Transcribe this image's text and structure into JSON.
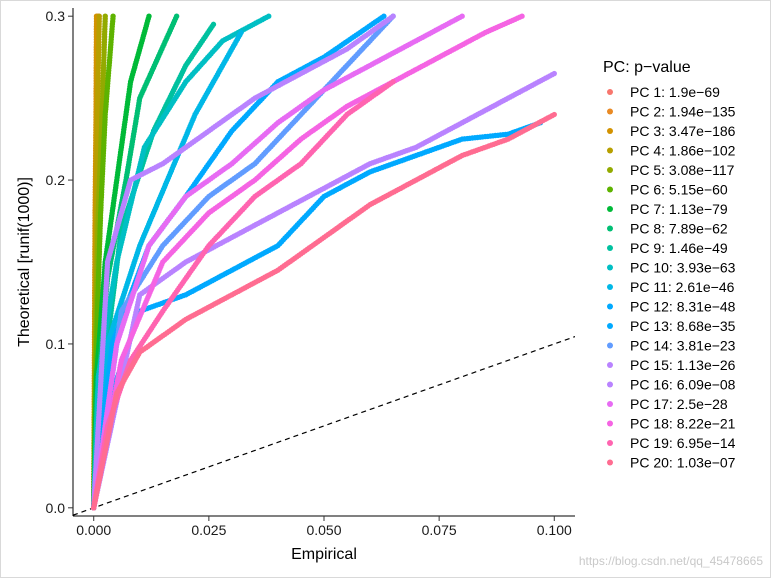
{
  "chart_data": {
    "type": "scatter",
    "title": "",
    "xlabel": "Empirical",
    "ylabel": "Theoretical [runif(1000)]",
    "xlim": [
      -0.0045,
      0.1045
    ],
    "ylim": [
      -0.005,
      0.305
    ],
    "xticks": [
      0.0,
      0.025,
      0.05,
      0.075,
      0.1
    ],
    "xtick_labels": [
      "0.000",
      "0.025",
      "0.050",
      "0.075",
      "0.100"
    ],
    "yticks": [
      0.0,
      0.1,
      0.2,
      0.3
    ],
    "ytick_labels": [
      "0.0",
      "0.1",
      "0.2",
      "0.3"
    ],
    "reference_line": {
      "style": "dashed",
      "slope": 1,
      "intercept": 0
    },
    "legend": {
      "title": "PC: p−value",
      "position": "right"
    },
    "series": [
      {
        "name": "PC 1: 1.9e−69",
        "color": "#F8766D",
        "x": [
          0.0,
          0.0002,
          0.0004,
          0.0006,
          0.0008,
          0.001
        ],
        "y": [
          0.0,
          0.06,
          0.12,
          0.18,
          0.24,
          0.3
        ]
      },
      {
        "name": "PC 2: 1.94e−135",
        "color": "#E98A24",
        "x": [
          0.0,
          0.0002,
          0.0004,
          0.0006,
          0.0008,
          0.0009
        ],
        "y": [
          0.0,
          0.06,
          0.12,
          0.18,
          0.24,
          0.3
        ]
      },
      {
        "name": "PC 3: 3.47e−186",
        "color": "#D39200",
        "x": [
          0.0,
          0.0001,
          0.0002,
          0.0003,
          0.0005,
          0.0006
        ],
        "y": [
          0.0,
          0.06,
          0.12,
          0.18,
          0.24,
          0.3
        ]
      },
      {
        "name": "PC 4: 1.86e−102",
        "color": "#B79F00",
        "x": [
          0.0,
          0.0002,
          0.0004,
          0.0006,
          0.0008,
          0.0012
        ],
        "y": [
          0.0,
          0.06,
          0.12,
          0.18,
          0.24,
          0.3
        ]
      },
      {
        "name": "PC 5: 3.08e−117",
        "color": "#93AA00",
        "x": [
          0.0,
          0.0002,
          0.0005,
          0.001,
          0.0018,
          0.0025
        ],
        "y": [
          0.0,
          0.06,
          0.12,
          0.18,
          0.24,
          0.3
        ]
      },
      {
        "name": "PC 6: 5.15e−60",
        "color": "#5EB300",
        "x": [
          0.0,
          0.0003,
          0.0008,
          0.0015,
          0.0025,
          0.0042
        ],
        "y": [
          0.0,
          0.06,
          0.12,
          0.18,
          0.24,
          0.3
        ]
      },
      {
        "name": "PC 7: 1.13e−79",
        "color": "#00BA38",
        "x": [
          0.0,
          0.0006,
          0.0025,
          0.005,
          0.008,
          0.012
        ],
        "y": [
          0.0,
          0.08,
          0.15,
          0.2,
          0.26,
          0.3
        ]
      },
      {
        "name": "PC 8: 7.89e−62",
        "color": "#00BF74",
        "x": [
          0.0,
          0.0008,
          0.003,
          0.007,
          0.01,
          0.018
        ],
        "y": [
          0.0,
          0.07,
          0.14,
          0.2,
          0.25,
          0.3
        ]
      },
      {
        "name": "PC 9: 1.46e−49",
        "color": "#00C19F",
        "x": [
          0.0,
          0.002,
          0.006,
          0.013,
          0.02,
          0.026
        ],
        "y": [
          0.0,
          0.08,
          0.17,
          0.23,
          0.27,
          0.295
        ]
      },
      {
        "name": "PC 10: 3.93e−63",
        "color": "#00BFC4",
        "x": [
          0.0,
          0.001,
          0.005,
          0.011,
          0.02,
          0.028,
          0.038
        ],
        "y": [
          0.0,
          0.08,
          0.15,
          0.22,
          0.26,
          0.285,
          0.3
        ]
      },
      {
        "name": "PC 11: 2.61e−46",
        "color": "#00B8E7",
        "x": [
          0.0,
          0.003,
          0.01,
          0.016,
          0.022,
          0.032
        ],
        "y": [
          0.0,
          0.1,
          0.16,
          0.2,
          0.24,
          0.29
        ]
      },
      {
        "name": "PC 12: 8.31e−48",
        "color": "#00A9FF",
        "x": [
          0.0,
          0.004,
          0.012,
          0.02,
          0.03,
          0.04,
          0.05,
          0.063
        ],
        "y": [
          0.0,
          0.1,
          0.16,
          0.19,
          0.23,
          0.26,
          0.275,
          0.3
        ]
      },
      {
        "name": "PC 13: 8.68e−35",
        "color": "#00A9FF",
        "x": [
          0.0,
          0.004,
          0.01,
          0.02,
          0.03,
          0.04,
          0.05,
          0.06,
          0.07,
          0.08,
          0.09,
          0.097
        ],
        "y": [
          0.0,
          0.07,
          0.12,
          0.13,
          0.145,
          0.16,
          0.19,
          0.205,
          0.215,
          0.225,
          0.228,
          0.235
        ]
      },
      {
        "name": "PC 14: 3.81e−23",
        "color": "#619CFF",
        "x": [
          0.0,
          0.006,
          0.015,
          0.025,
          0.035,
          0.045,
          0.055,
          0.065
        ],
        "y": [
          0.0,
          0.12,
          0.16,
          0.19,
          0.21,
          0.24,
          0.27,
          0.3
        ]
      },
      {
        "name": "PC 15: 1.13e−26",
        "color": "#B983FF",
        "x": [
          0.0,
          0.003,
          0.008,
          0.015,
          0.025,
          0.035,
          0.045,
          0.055,
          0.065
        ],
        "y": [
          0.0,
          0.15,
          0.2,
          0.21,
          0.23,
          0.25,
          0.265,
          0.28,
          0.3
        ]
      },
      {
        "name": "PC 16: 6.09e−08",
        "color": "#B983FF",
        "x": [
          0.0,
          0.01,
          0.02,
          0.03,
          0.04,
          0.05,
          0.06,
          0.07,
          0.08,
          0.09,
          0.1
        ],
        "y": [
          0.0,
          0.13,
          0.15,
          0.165,
          0.18,
          0.195,
          0.21,
          0.22,
          0.235,
          0.25,
          0.265
        ]
      },
      {
        "name": "PC 17: 2.5e−28",
        "color": "#E76BF3",
        "x": [
          0.0,
          0.005,
          0.012,
          0.02,
          0.03,
          0.04,
          0.05,
          0.06,
          0.07,
          0.08
        ],
        "y": [
          0.0,
          0.1,
          0.16,
          0.19,
          0.21,
          0.235,
          0.255,
          0.27,
          0.285,
          0.3
        ]
      },
      {
        "name": "PC 18: 8.22e−21",
        "color": "#F564E3",
        "x": [
          0.0,
          0.006,
          0.015,
          0.025,
          0.035,
          0.045,
          0.055,
          0.065,
          0.075,
          0.085,
          0.093
        ],
        "y": [
          0.0,
          0.09,
          0.15,
          0.18,
          0.2,
          0.225,
          0.245,
          0.26,
          0.275,
          0.29,
          0.3
        ]
      },
      {
        "name": "PC 19: 6.95e−14",
        "color": "#FF64B0",
        "x": [
          0.0,
          0.003,
          0.008,
          0.015,
          0.025,
          0.035,
          0.045,
          0.055,
          0.065
        ],
        "y": [
          0.0,
          0.05,
          0.09,
          0.12,
          0.16,
          0.19,
          0.21,
          0.24,
          0.26
        ]
      },
      {
        "name": "PC 20: 1.03e−07",
        "color": "#FF6C91",
        "x": [
          0.0,
          0.005,
          0.01,
          0.02,
          0.03,
          0.04,
          0.05,
          0.06,
          0.07,
          0.08,
          0.09,
          0.1
        ],
        "y": [
          0.0,
          0.07,
          0.095,
          0.115,
          0.13,
          0.145,
          0.165,
          0.185,
          0.2,
          0.215,
          0.225,
          0.24
        ]
      }
    ]
  },
  "watermark": "https://blog.csdn.net/qq_45478665"
}
